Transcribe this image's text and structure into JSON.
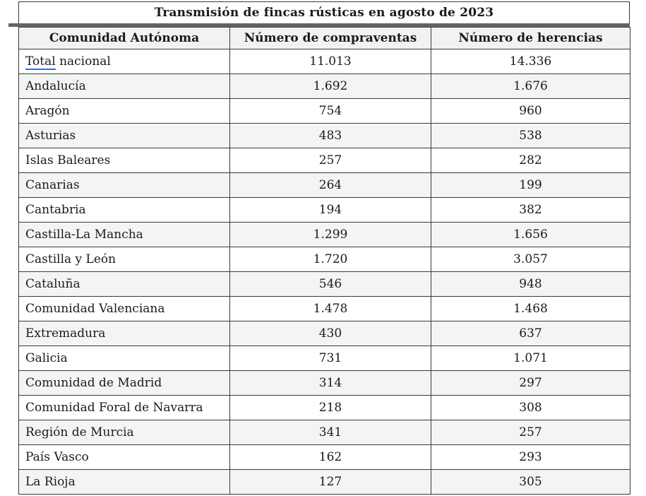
{
  "title": "Transmisión de fincas rústicas en agosto de 2023",
  "table": {
    "columns": [
      "Comunidad Autónoma",
      "Número de compraventas",
      "Número de herencias"
    ],
    "rows": [
      {
        "comunidad": "Total nacional",
        "link_text": "Total",
        "compraventas": "11.013",
        "herencias": "14.336"
      },
      {
        "comunidad": "Andalucía",
        "compraventas": "1.692",
        "herencias": "1.676"
      },
      {
        "comunidad": "Aragón",
        "compraventas": "754",
        "herencias": "960"
      },
      {
        "comunidad": "Asturias",
        "compraventas": "483",
        "herencias": "538"
      },
      {
        "comunidad": "Islas Baleares",
        "compraventas": "257",
        "herencias": "282"
      },
      {
        "comunidad": "Canarias",
        "compraventas": "264",
        "herencias": "199"
      },
      {
        "comunidad": "Cantabria",
        "compraventas": "194",
        "herencias": "382"
      },
      {
        "comunidad": "Castilla-La Mancha",
        "compraventas": "1.299",
        "herencias": "1.656"
      },
      {
        "comunidad": "Castilla y León",
        "compraventas": "1.720",
        "herencias": "3.057"
      },
      {
        "comunidad": "Cataluña",
        "compraventas": "546",
        "herencias": "948"
      },
      {
        "comunidad": "Comunidad Valenciana",
        "compraventas": "1.478",
        "herencias": "1.468"
      },
      {
        "comunidad": "Extremadura",
        "compraventas": "430",
        "herencias": "637"
      },
      {
        "comunidad": "Galicia",
        "compraventas": "731",
        "herencias": "1.071"
      },
      {
        "comunidad": "Comunidad de Madrid",
        "compraventas": "314",
        "herencias": "297"
      },
      {
        "comunidad": "Comunidad Foral de Navarra",
        "compraventas": "218",
        "herencias": "308"
      },
      {
        "comunidad": "Región de Murcia",
        "compraventas": "341",
        "herencias": "257"
      },
      {
        "comunidad": "País Vasco",
        "compraventas": "162",
        "herencias": "293"
      },
      {
        "comunidad": "La Rioja",
        "compraventas": "127",
        "herencias": "305"
      }
    ]
  },
  "colors": {
    "border": "#3a3a3a",
    "thick_bar": "#636363",
    "header_bg": "#f2f2f2",
    "stripe_bg": "#f4f4f4",
    "link_underline": "#3e6bd0"
  },
  "chart_data": {
    "type": "table",
    "title": "Transmisión de fincas rústicas en agosto de 2023",
    "categories": [
      "Total nacional",
      "Andalucía",
      "Aragón",
      "Asturias",
      "Islas Baleares",
      "Canarias",
      "Cantabria",
      "Castilla-La Mancha",
      "Castilla y León",
      "Cataluña",
      "Comunidad Valenciana",
      "Extremadura",
      "Galicia",
      "Comunidad de Madrid",
      "Comunidad Foral de Navarra",
      "Región de Murcia",
      "País Vasco",
      "La Rioja"
    ],
    "series": [
      {
        "name": "Número de compraventas",
        "values": [
          11013,
          1692,
          754,
          483,
          257,
          264,
          194,
          1299,
          1720,
          546,
          1478,
          430,
          731,
          314,
          218,
          341,
          162,
          127
        ]
      },
      {
        "name": "Número de herencias",
        "values": [
          14336,
          1676,
          960,
          538,
          282,
          199,
          382,
          1656,
          3057,
          948,
          1468,
          637,
          1071,
          297,
          308,
          257,
          293,
          305
        ]
      }
    ],
    "layout_hints": {
      "striped_rows": true,
      "first_row_is_total": true,
      "number_format": "es-ES thousands dot"
    }
  }
}
